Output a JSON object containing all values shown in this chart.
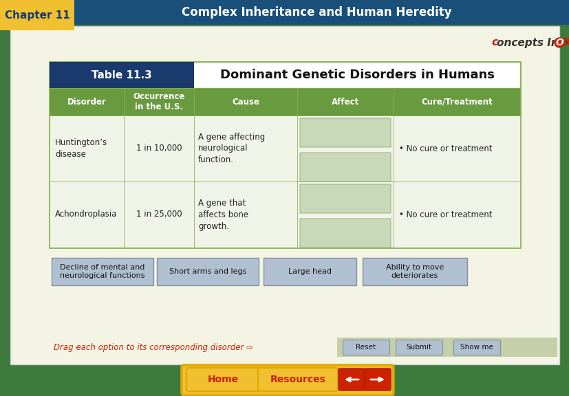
{
  "title_chapter": "Chapter 11",
  "title_main": "Complex Inheritance and Human Heredity",
  "table_label": "Table 11.3",
  "table_title": "Dominant Genetic Disorders in Humans",
  "headers": [
    "Disorder",
    "Occurrence\nin the U.S.",
    "Cause",
    "Affect",
    "Cure/Treatment"
  ],
  "rows": [
    [
      "Huntington’s\ndisease",
      "1 in 10,000",
      "A gene affecting\nneurological\nfunction.",
      "",
      "• No cure or treatment"
    ],
    [
      "Achondroplasia",
      "1 in 25,000",
      "A gene that\naffects bone\ngrowth.",
      "",
      "• No cure or treatment"
    ]
  ],
  "drag_options": [
    "Decline of mental and\nneurological functions",
    "Short arms and legs",
    "Large head",
    "Ability to move\ndeteriorates"
  ],
  "drag_text": "Drag each option to its corresponding disorder ⇨",
  "bottom_buttons": [
    "Reset",
    "Submit",
    "Show me"
  ],
  "home_btn": "Home",
  "resources_btn": "Resources",
  "colors": {
    "bg_outer": "#3d7a3d",
    "bg_inner": "#f4f4e4",
    "header_bar_blue": "#1a4f7a",
    "chapter_tab_yellow": "#f0c030",
    "chapter_tab_text": "#1a3a6e",
    "title_text_white": "#ffffff",
    "table_title_bg": "#1a3a6e",
    "table_title_text": "#ffffff",
    "table_header_bg": "#6a9a40",
    "table_header_text": "#ffffff",
    "table_bg": "#f0f4e8",
    "table_border": "#8ab050",
    "affect_box_bg": "#c8d8b8",
    "affect_box_border": "#9ab880",
    "drag_btn_bg": "#b0c0d0",
    "drag_btn_border": "#8090a0",
    "drag_text_color": "#cc2200",
    "bottom_btn_bg": "#b0c0d0",
    "bottom_btn_border": "#8090a0",
    "nav_btn_yellow": "#f0c030",
    "nav_btn_text": "#cc2200",
    "arrow_btn_red": "#cc2200",
    "logo_text_dark": "#333333",
    "logo_c_red": "#cc2200",
    "logo_o_color": "#cc2200"
  }
}
